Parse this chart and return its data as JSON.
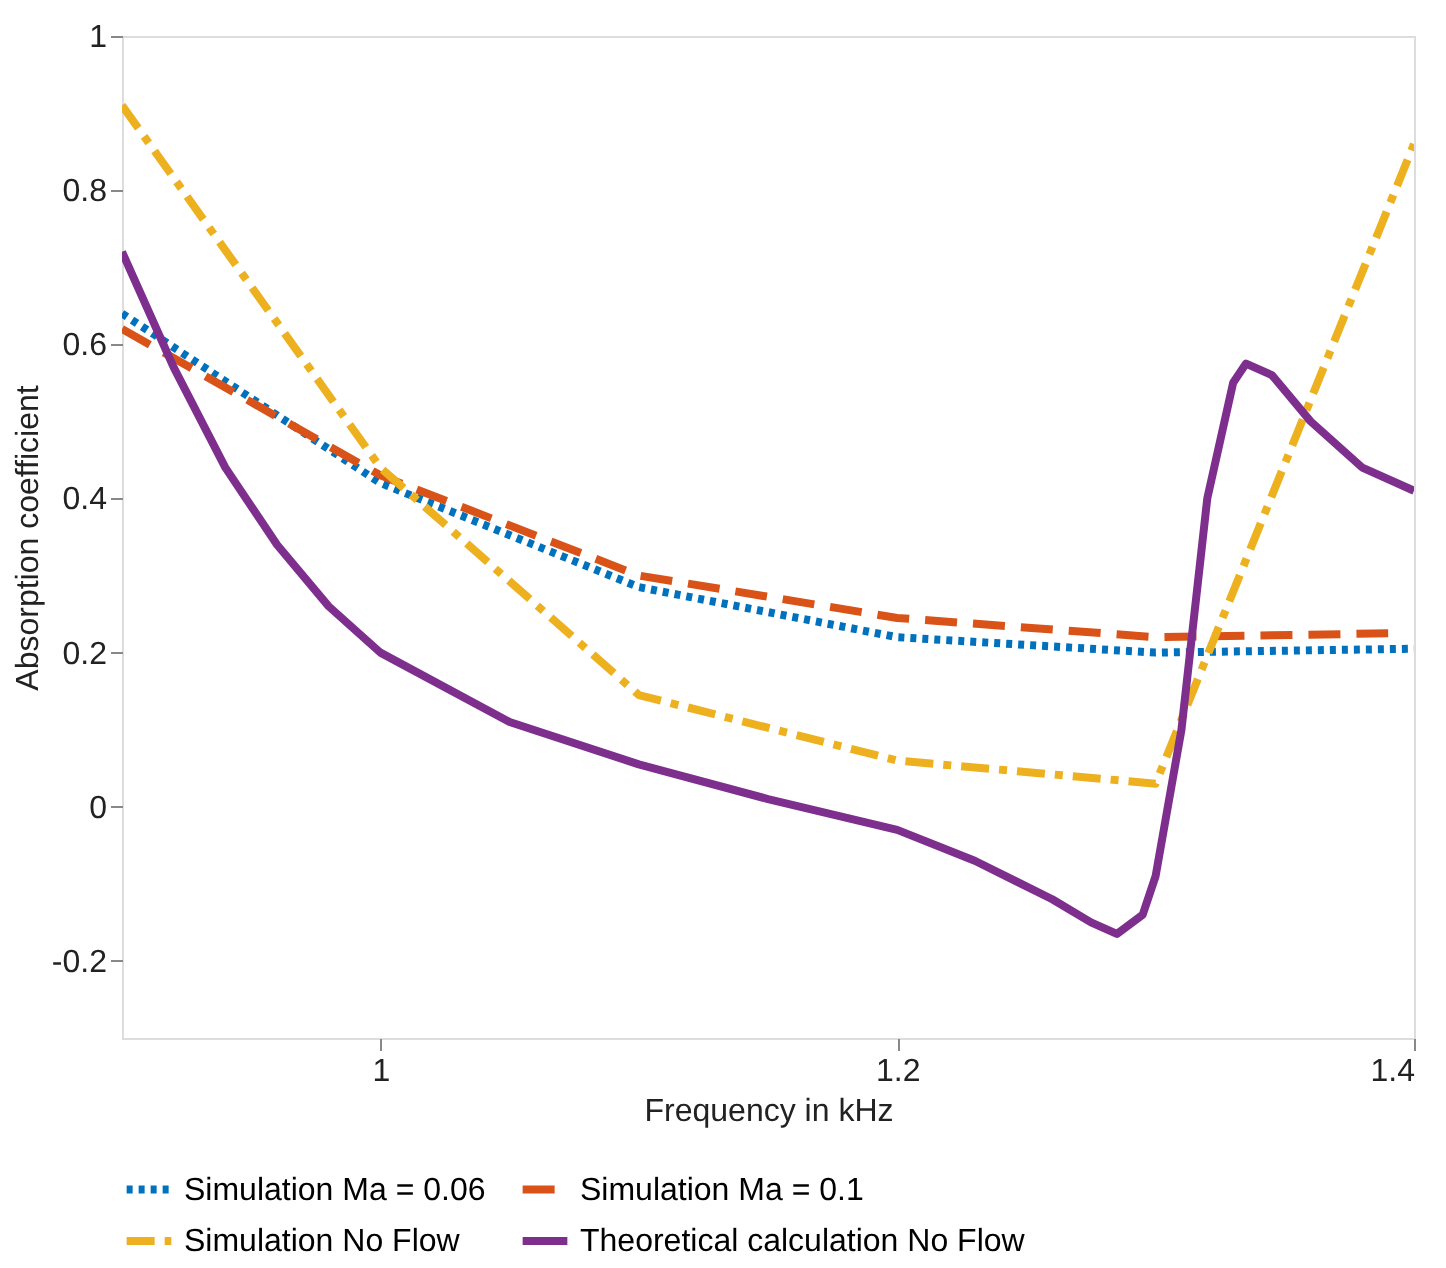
{
  "chart_data": {
    "type": "line",
    "xlabel": "Frequency in kHz",
    "ylabel": "Absorption coefficient",
    "xlim": [
      0.9,
      1.4
    ],
    "ylim": [
      -0.3,
      1
    ],
    "xticks": [
      1,
      1.2,
      1.4
    ],
    "yticks": [
      -0.2,
      0,
      0.2,
      0.4,
      0.6,
      0.8,
      1
    ],
    "grid": false,
    "legend": "bottom",
    "marker": "none",
    "series": [
      {
        "name": "Simulation Ma = 0.06",
        "color": "#0072bd",
        "line_style": "dotted",
        "x": [
          0.9,
          1.0,
          1.1,
          1.2,
          1.3,
          1.4
        ],
        "values": [
          0.64,
          0.42,
          0.285,
          0.22,
          0.2,
          0.205
        ]
      },
      {
        "name": "Simulation Ma = 0.1",
        "color": "#d95319",
        "line_style": "dashed",
        "x": [
          0.9,
          1.0,
          1.1,
          1.2,
          1.3,
          1.39
        ],
        "values": [
          0.62,
          0.43,
          0.3,
          0.245,
          0.22,
          0.225
        ]
      },
      {
        "name": "Simulation No Flow",
        "color": "#edb120",
        "line_style": "dashdot",
        "x": [
          0.9,
          1.0,
          1.1,
          1.2,
          1.3,
          1.4
        ],
        "values": [
          0.91,
          0.44,
          0.145,
          0.06,
          0.03,
          0.86
        ]
      },
      {
        "name": "Theoretical calculation No Flow",
        "color": "#7e2f8e",
        "line_style": "solid",
        "x": [
          0.9,
          0.92,
          0.94,
          0.96,
          0.98,
          1.0,
          1.05,
          1.1,
          1.15,
          1.2,
          1.23,
          1.26,
          1.275,
          1.285,
          1.295,
          1.3,
          1.31,
          1.32,
          1.33,
          1.335,
          1.345,
          1.36,
          1.38,
          1.4
        ],
        "values": [
          0.72,
          0.57,
          0.44,
          0.34,
          0.26,
          0.2,
          0.11,
          0.055,
          0.01,
          -0.03,
          -0.07,
          -0.12,
          -0.15,
          -0.165,
          -0.14,
          -0.09,
          0.1,
          0.4,
          0.55,
          0.575,
          0.56,
          0.5,
          0.44,
          0.41
        ]
      }
    ]
  }
}
